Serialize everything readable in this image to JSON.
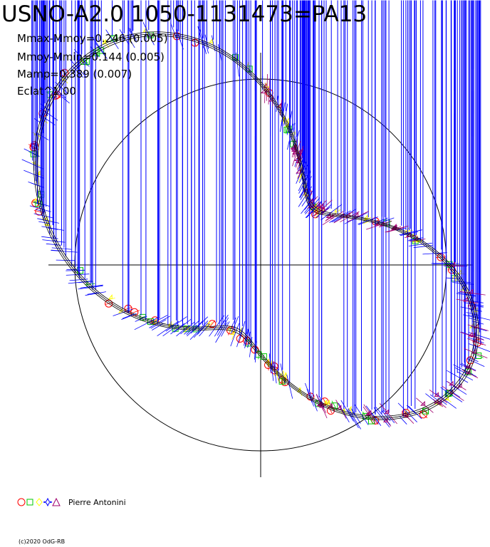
{
  "title": "USNO-A2.0 1050-1131473=PA13",
  "stats": [
    "Mmax-Mmoy=0.246 (0.005)",
    "Mmoy-Mmin=0.144 (0.005)",
    "Mamp=0.389 (0.007)",
    "Eclat^1.00"
  ],
  "legend_label": "Pierre Antonini",
  "footer": "(c)2020 OdG-RB",
  "colors": {
    "axis": "#000000",
    "red": "#ff0000",
    "green": "#00c800",
    "yellow": "#ffff00",
    "blue": "#0000ff",
    "magenta": "#a0006e"
  },
  "chart_data": {
    "type": "scatter",
    "projection": "polar light curve (phase as angle, magnitude as radius)",
    "reference_circle_radius_mag": 0.246,
    "fitted_curve": {
      "harmonics": [
        {
          "k": 1,
          "amp": 0.045,
          "phase": 0.4
        },
        {
          "k": 2,
          "amp": 0.11,
          "phase": 1.9
        },
        {
          "k": 3,
          "amp": 0.025,
          "phase": 0.7
        }
      ],
      "base": 0.215
    },
    "series": [
      {
        "marker": "circle",
        "color": "red",
        "phase_ranges": [
          [
            0.0,
            1.0
          ]
        ],
        "count": 42
      },
      {
        "marker": "square",
        "color": "green",
        "phase_ranges": [
          [
            0.0,
            1.0
          ]
        ],
        "count": 40
      },
      {
        "marker": "diamond",
        "color": "yellow",
        "phase_ranges": [
          [
            0.0,
            1.0
          ]
        ],
        "count": 70
      },
      {
        "marker": "star",
        "color": "blue",
        "phase_ranges": [
          [
            0.0,
            1.0
          ]
        ],
        "count": 230
      },
      {
        "marker": "triangle",
        "color": "magenta",
        "phase_ranges": [
          [
            0.0,
            0.45
          ]
        ],
        "count": 60
      }
    ]
  }
}
